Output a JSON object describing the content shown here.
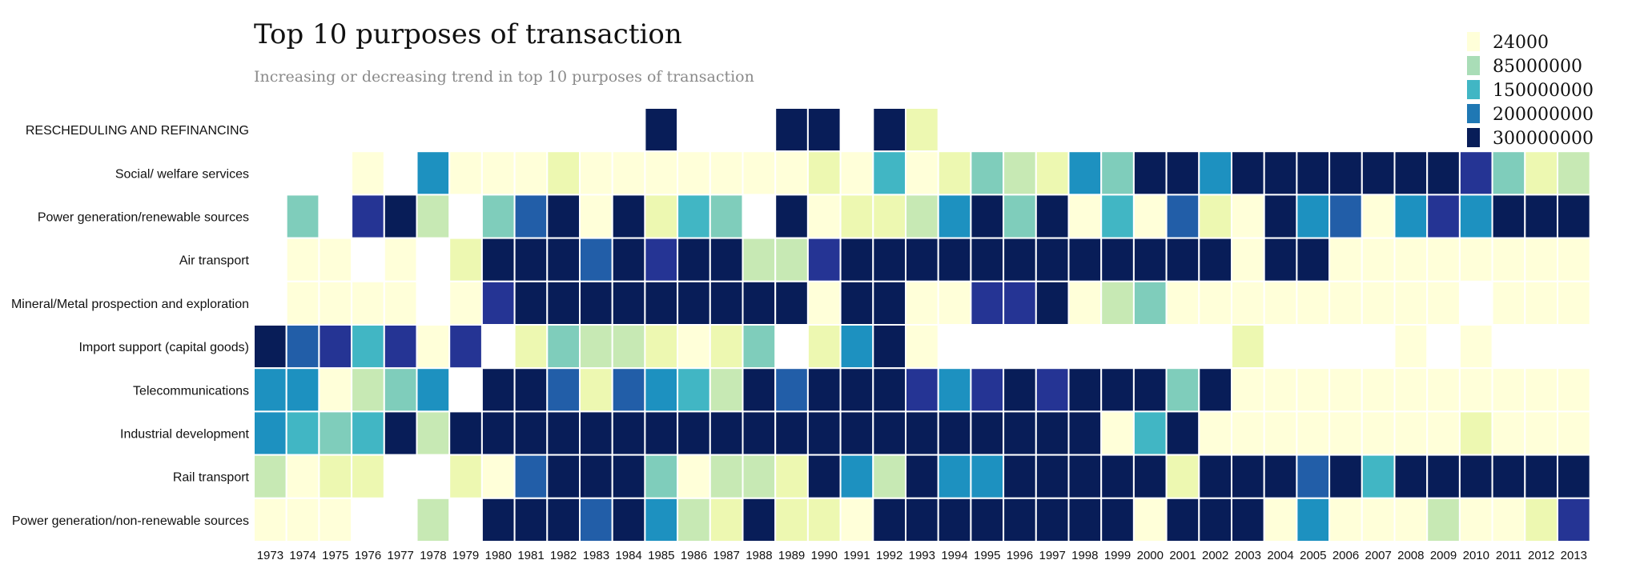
{
  "chart_data": {
    "type": "heatmap",
    "title": "Top 10 purposes of transaction",
    "subtitle": "Increasing or decreasing trend in top 10 purposes of transaction",
    "x": [
      1973,
      1974,
      1975,
      1976,
      1977,
      1978,
      1979,
      1980,
      1981,
      1982,
      1983,
      1984,
      1985,
      1986,
      1987,
      1988,
      1989,
      1990,
      1991,
      1992,
      1993,
      1994,
      1995,
      1996,
      1997,
      1998,
      1999,
      2000,
      2001,
      2002,
      2003,
      2004,
      2005,
      2006,
      2007,
      2008,
      2009,
      2010,
      2011,
      2012,
      2013
    ],
    "y": [
      "RESCHEDULING AND REFINANCING",
      "Social/ welfare services",
      "Power generation/renewable sources",
      "Air transport",
      "Mineral/Metal prospection and exploration",
      "Import support (capital goods)",
      "Telecommunications",
      "Industrial development",
      "Rail transport",
      "Power generation/non-renewable sources"
    ],
    "legend": {
      "position": "top-right",
      "thresholds": [
        24000,
        85000000,
        150000000,
        200000000,
        300000000
      ],
      "colors": [
        "#ffffd9",
        "#a9ddb7",
        "#41b6c4",
        "#1f78b4",
        "#081d58"
      ]
    },
    "values": [
      [
        null,
        null,
        null,
        null,
        null,
        null,
        null,
        null,
        null,
        null,
        null,
        null,
        300000000,
        null,
        null,
        null,
        300000000,
        300000000,
        null,
        300000000,
        40000000,
        null,
        null,
        null,
        null,
        null,
        null,
        null,
        null,
        null,
        null,
        null,
        null,
        null,
        null,
        null,
        null,
        null,
        null,
        null,
        null
      ],
      [
        null,
        null,
        null,
        10000000,
        null,
        185000000,
        10000000,
        15000000,
        3000000,
        20000000,
        15000000,
        12000000,
        18000000,
        10000000,
        6000000,
        7000000,
        10000000,
        50000000,
        12000000,
        140000000,
        15000000,
        40000000,
        95000000,
        70000000,
        45000000,
        200000000,
        110000000,
        300000000,
        300000000,
        185000000,
        300000000,
        300000000,
        300000000,
        300000000,
        300000000,
        300000000,
        300000000,
        260000000,
        110000000,
        50000000,
        60000000
      ],
      [
        null,
        110000000,
        null,
        260000000,
        300000000,
        85000000,
        null,
        95000000,
        240000000,
        300000000,
        10000000,
        300000000,
        35000000,
        160000000,
        95000000,
        null,
        300000000,
        3000000,
        40000000,
        25000000,
        60000000,
        200000000,
        300000000,
        100000000,
        300000000,
        8000000,
        160000000,
        2000000,
        210000000,
        25000000,
        15000000,
        300000000,
        180000000,
        220000000,
        8000000,
        170000000,
        250000000,
        180000000,
        300000000,
        300000000,
        300000000
      ],
      [
        null,
        5000000,
        5000000,
        null,
        3000000,
        null,
        45000000,
        300000000,
        300000000,
        300000000,
        220000000,
        300000000,
        280000000,
        300000000,
        300000000,
        70000000,
        80000000,
        260000000,
        300000000,
        300000000,
        300000000,
        300000000,
        300000000,
        300000000,
        300000000,
        300000000,
        300000000,
        300000000,
        300000000,
        300000000,
        2000000,
        300000000,
        300000000,
        3000000,
        3000000,
        3000000,
        3000000,
        3000000,
        3000000,
        3000000,
        3000000
      ],
      [
        null,
        2000000,
        6000000,
        3000000,
        8000000,
        null,
        15000000,
        260000000,
        300000000,
        300000000,
        300000000,
        300000000,
        300000000,
        300000000,
        300000000,
        300000000,
        300000000,
        6000000,
        300000000,
        300000000,
        18000000,
        18000000,
        260000000,
        280000000,
        300000000,
        5000000,
        60000000,
        120000000,
        3000000,
        8000000,
        5000000,
        5000000,
        7000000,
        5000000,
        5000000,
        3000000,
        3000000,
        null,
        3000000,
        3000000,
        3000000
      ],
      [
        300000000,
        230000000,
        280000000,
        150000000,
        250000000,
        8000000,
        260000000,
        null,
        20000000,
        95000000,
        65000000,
        70000000,
        50000000,
        18000000,
        30000000,
        130000000,
        null,
        22000000,
        170000000,
        300000000,
        10000000,
        null,
        null,
        null,
        null,
        null,
        null,
        null,
        null,
        null,
        45000000,
        null,
        null,
        null,
        null,
        3000000,
        null,
        3000000,
        null,
        null,
        null
      ],
      [
        200000000,
        180000000,
        12000000,
        75000000,
        110000000,
        200000000,
        null,
        300000000,
        300000000,
        230000000,
        55000000,
        210000000,
        180000000,
        160000000,
        85000000,
        300000000,
        240000000,
        285000000,
        300000000,
        300000000,
        250000000,
        200000000,
        250000000,
        300000000,
        270000000,
        300000000,
        300000000,
        300000000,
        100000000,
        300000000,
        12000000,
        4000000,
        4000000,
        4000000,
        4000000,
        3000000,
        3000000,
        3000000,
        3000000,
        3000000,
        3000000
      ],
      [
        190000000,
        150000000,
        120000000,
        140000000,
        300000000,
        80000000,
        300000000,
        300000000,
        300000000,
        300000000,
        300000000,
        300000000,
        300000000,
        300000000,
        300000000,
        300000000,
        300000000,
        300000000,
        300000000,
        300000000,
        300000000,
        300000000,
        300000000,
        300000000,
        300000000,
        300000000,
        15000000,
        140000000,
        300000000,
        10000000,
        12000000,
        5000000,
        5000000,
        5000000,
        3000000,
        3000000,
        5000000,
        55000000,
        5000000,
        5000000,
        5000000
      ],
      [
        70000000,
        15000000,
        30000000,
        30000000,
        null,
        null,
        30000000,
        8000000,
        240000000,
        300000000,
        300000000,
        300000000,
        110000000,
        10000000,
        60000000,
        85000000,
        40000000,
        300000000,
        190000000,
        65000000,
        300000000,
        170000000,
        170000000,
        300000000,
        300000000,
        300000000,
        300000000,
        300000000,
        50000000,
        300000000,
        300000000,
        300000000,
        230000000,
        300000000,
        150000000,
        300000000,
        300000000,
        300000000,
        300000000,
        300000000,
        300000000
      ],
      [
        8000000,
        14000000,
        14000000,
        null,
        null,
        80000000,
        null,
        300000000,
        300000000,
        300000000,
        210000000,
        300000000,
        185000000,
        80000000,
        22000000,
        300000000,
        20000000,
        45000000,
        3000000,
        300000000,
        300000000,
        300000000,
        300000000,
        300000000,
        300000000,
        300000000,
        300000000,
        3000000,
        300000000,
        300000000,
        300000000,
        3000000,
        185000000,
        3000000,
        3000000,
        3000000,
        70000000,
        3000000,
        3000000,
        25000000,
        260000000
      ]
    ]
  }
}
